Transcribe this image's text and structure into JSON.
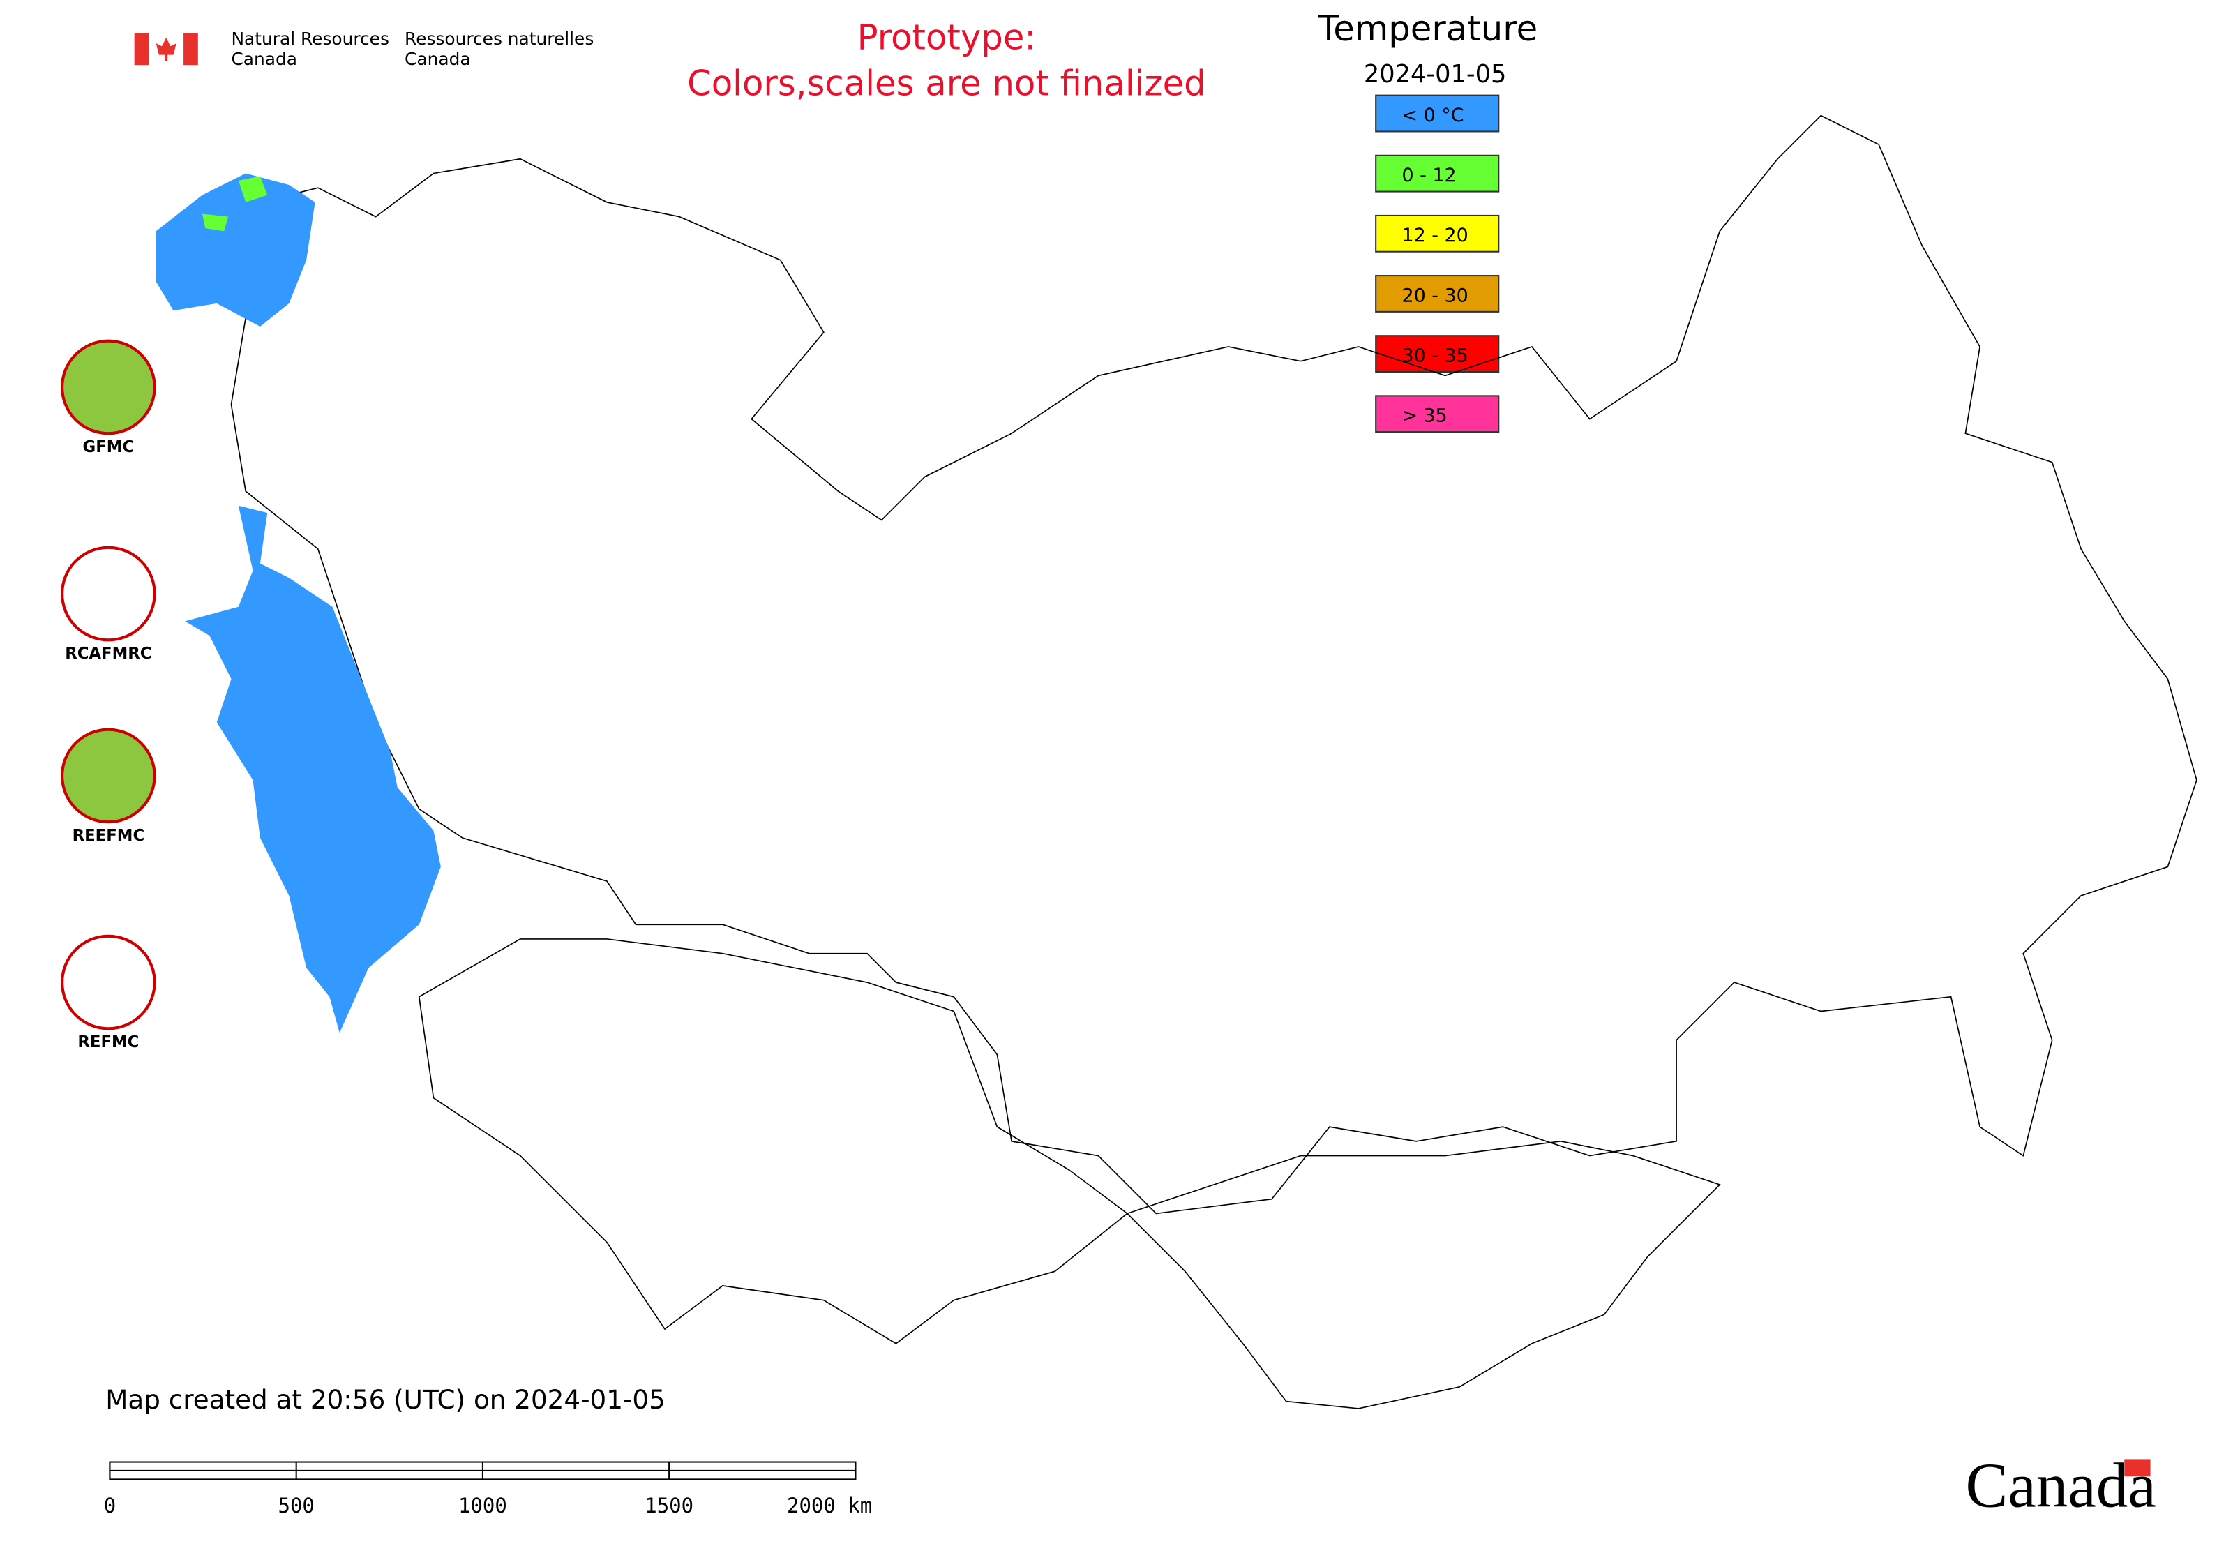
{
  "header": {
    "dept_en": [
      "Natural Resources",
      "Canada"
    ],
    "dept_fr": [
      "Ressources naturelles",
      "Canada"
    ]
  },
  "prototype_note": [
    "Prototype:",
    "Colors,scales are not finalized"
  ],
  "legend": {
    "title": "Temperature",
    "date": "2024-01-05",
    "items": [
      {
        "label": "< 0 °C",
        "color": "#3399ff"
      },
      {
        "label": "0 - 12",
        "color": "#66ff33"
      },
      {
        "label": "12 - 20",
        "color": "#ffff00"
      },
      {
        "label": "20 - 30",
        "color": "#e09c00"
      },
      {
        "label": "30 - 35",
        "color": "#ff0000"
      },
      {
        "label": "> 35",
        "color": "#ff3399"
      }
    ]
  },
  "logos": [
    "GFMC",
    "RCAFMRC",
    "REEFMC",
    "REFMC"
  ],
  "footer": "Map created at 20:56 (UTC) on 2024-01-05",
  "scale_bar": [
    "0",
    "500",
    "1000",
    "1500",
    "2000 km"
  ],
  "wordmark": "Canada"
}
